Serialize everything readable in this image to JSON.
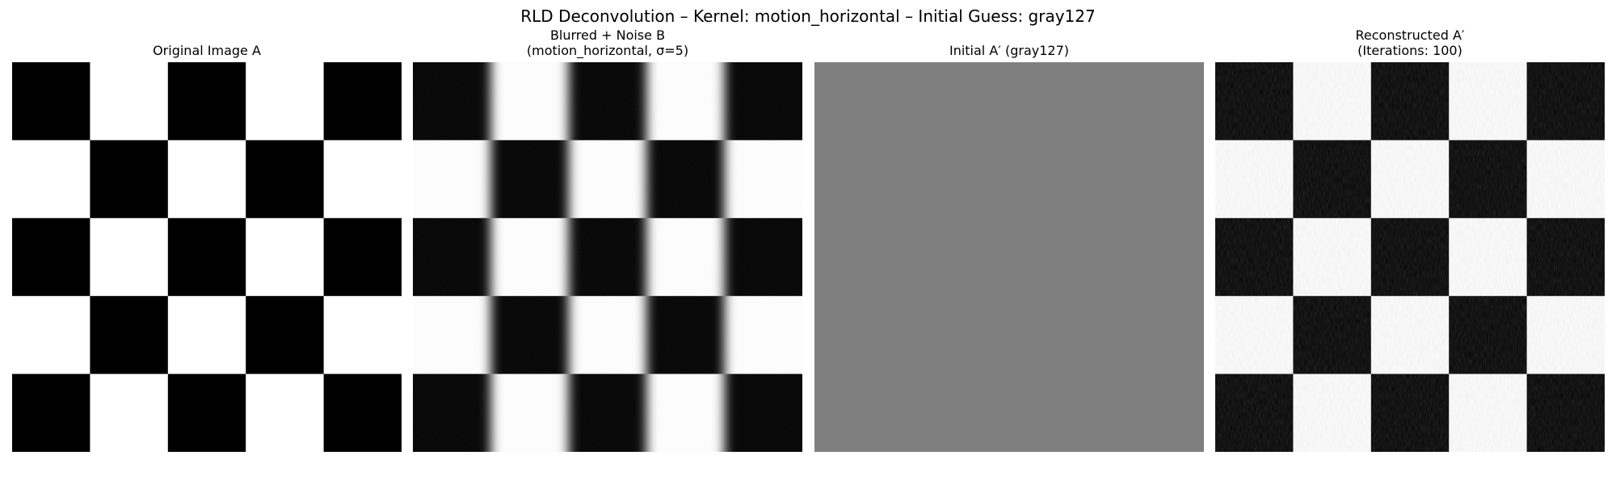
{
  "figure": {
    "title": "RLD Deconvolution – Kernel: motion_horizontal – Initial Guess: gray127"
  },
  "panels": [
    {
      "title_lines": [
        "Original Image A"
      ],
      "image": {
        "content": "checkerboard",
        "grid": 5,
        "blur": "none",
        "noise": "none",
        "fill": "#000000"
      }
    },
    {
      "title_lines": [
        "Blurred + Noise B",
        "(motion_horizontal, σ=5)"
      ],
      "image": {
        "content": "checkerboard",
        "grid": 5,
        "blur": "horizontal",
        "noise": "light",
        "fill": "#000000"
      }
    },
    {
      "title_lines": [
        "Initial A′ (gray127)"
      ],
      "image": {
        "content": "uniform",
        "fill": "#7f7f7f"
      }
    },
    {
      "title_lines": [
        "Reconstructed A′",
        "(Iterations: 100)"
      ],
      "image": {
        "content": "checkerboard",
        "grid": 5,
        "blur": "none",
        "noise": "grainy",
        "fill": "#000000"
      }
    }
  ]
}
